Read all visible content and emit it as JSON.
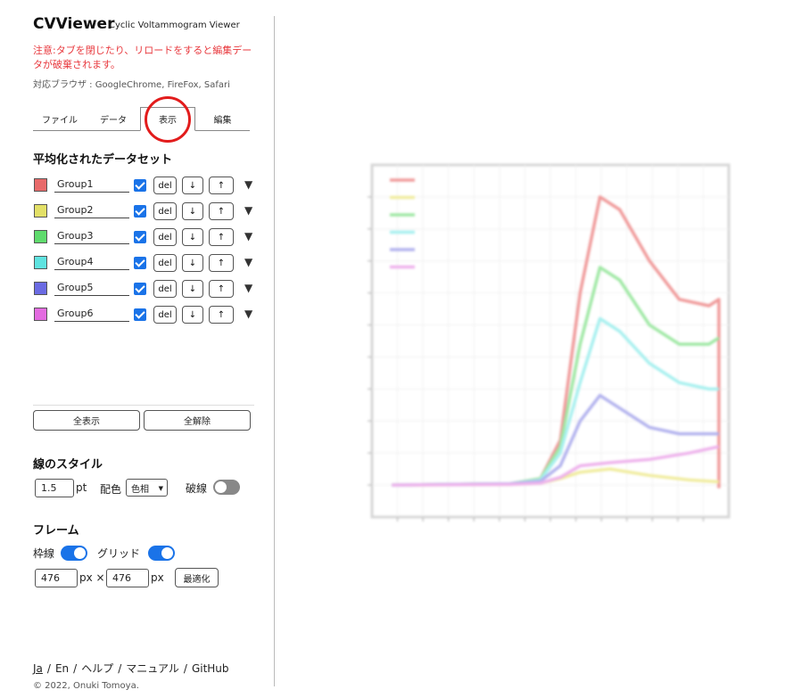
{
  "app": {
    "title": "CVViewer",
    "subtitle": "Cyclic Voltammogram Viewer",
    "warning": "注意:タブを閉じたり、リロードをすると編集データが破棄されます。",
    "browsers": "対応ブラウザ : GoogleChrome, FireFox, Safari"
  },
  "tabs": [
    {
      "label": "ファイル"
    },
    {
      "label": "データ"
    },
    {
      "label": "表示",
      "active": true
    },
    {
      "label": "編集"
    }
  ],
  "datasets": {
    "title": "平均化されたデータセット",
    "del_label": "del",
    "down_label": "↓",
    "up_label": "↑",
    "expand_glyph": "▼",
    "items": [
      {
        "name": "Group1",
        "color": "#e86a6a",
        "checked": true
      },
      {
        "name": "Group2",
        "color": "#e3e067",
        "checked": true
      },
      {
        "name": "Group3",
        "color": "#5fdb6d",
        "checked": true
      },
      {
        "name": "Group4",
        "color": "#5fe3e0",
        "checked": true
      },
      {
        "name": "Group5",
        "color": "#6b6be3",
        "checked": true
      },
      {
        "name": "Group6",
        "color": "#e36be0",
        "checked": true
      }
    ],
    "show_all": "全表示",
    "clear_all": "全解除"
  },
  "line_style": {
    "title": "線のスタイル",
    "width": "1.5",
    "width_unit": "pt",
    "color_label": "配色",
    "color_value": "色相",
    "dashed_label": "破線",
    "dashed_on": false
  },
  "frame": {
    "title": "フレーム",
    "border_label": "枠線",
    "border_on": true,
    "grid_label": "グリッド",
    "grid_on": true,
    "width": "476",
    "height": "476",
    "width_unit": "px ×",
    "height_unit": "px",
    "optimize_label": "最適化"
  },
  "footer": {
    "links": [
      "Ja",
      "En",
      "ヘルプ",
      "マニュアル",
      "GitHub"
    ],
    "copyright": "© 2022, Onuki Tomoya."
  },
  "chart_data": {
    "type": "line",
    "title": "",
    "xlabel": "",
    "ylabel": "",
    "grid": true,
    "legend_position": "top-left",
    "xlim": [
      -1.0,
      0.8
    ],
    "ylim": [
      -0.5,
      5.0
    ],
    "series": [
      {
        "color": "#f09a9a",
        "x": [
          -0.9,
          -0.3,
          -0.15,
          -0.05,
          0.05,
          0.15,
          0.25,
          0.4,
          0.55,
          0.7,
          0.75,
          0.75
        ],
        "y": [
          0,
          0.02,
          0.1,
          0.7,
          3.0,
          4.5,
          4.3,
          3.5,
          2.9,
          2.8,
          2.9,
          -0.05
        ]
      },
      {
        "color": "#f0ec9e",
        "x": [
          -0.9,
          -0.3,
          -0.15,
          -0.05,
          0.05,
          0.2,
          0.4,
          0.6,
          0.75
        ],
        "y": [
          0,
          0.01,
          0.03,
          0.1,
          0.2,
          0.25,
          0.15,
          0.08,
          0.05
        ]
      },
      {
        "color": "#9fe8a4",
        "x": [
          -0.9,
          -0.3,
          -0.15,
          -0.05,
          0.05,
          0.15,
          0.25,
          0.4,
          0.55,
          0.7,
          0.75
        ],
        "y": [
          0,
          0.02,
          0.1,
          0.6,
          2.2,
          3.4,
          3.2,
          2.5,
          2.2,
          2.2,
          2.3
        ]
      },
      {
        "color": "#a7f0ef",
        "x": [
          -0.9,
          -0.3,
          -0.15,
          -0.05,
          0.05,
          0.15,
          0.25,
          0.4,
          0.55,
          0.7,
          0.75
        ],
        "y": [
          0,
          0.02,
          0.08,
          0.5,
          1.6,
          2.6,
          2.4,
          1.9,
          1.6,
          1.5,
          1.5
        ]
      },
      {
        "color": "#b2b2ee",
        "x": [
          -0.9,
          -0.3,
          -0.15,
          -0.05,
          0.05,
          0.15,
          0.25,
          0.4,
          0.55,
          0.7,
          0.75
        ],
        "y": [
          0,
          0.02,
          0.06,
          0.3,
          1.0,
          1.4,
          1.2,
          0.9,
          0.8,
          0.8,
          0.8
        ]
      },
      {
        "color": "#eeb2ec",
        "x": [
          -0.9,
          -0.3,
          -0.15,
          -0.05,
          0.05,
          0.2,
          0.4,
          0.6,
          0.75
        ],
        "y": [
          0,
          0.01,
          0.03,
          0.12,
          0.3,
          0.35,
          0.4,
          0.5,
          0.6
        ]
      }
    ]
  }
}
